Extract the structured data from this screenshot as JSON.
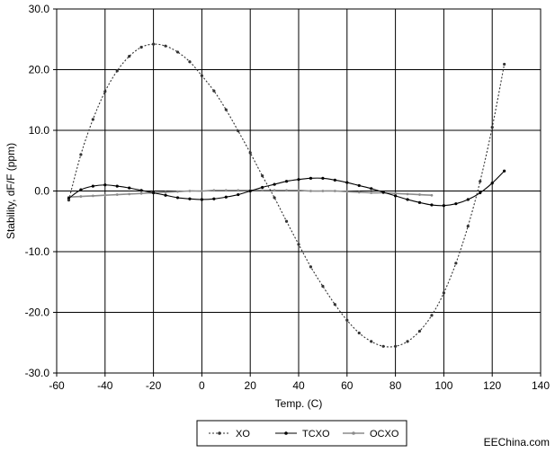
{
  "chart_data": {
    "type": "line",
    "title": "",
    "xlabel": "Temp. (C)",
    "ylabel": "Stability, dF/F (ppm)",
    "xlim": [
      -60,
      140
    ],
    "ylim": [
      -30,
      30
    ],
    "xticks": [
      "-60",
      "-40",
      "-20",
      "0",
      "20",
      "40",
      "60",
      "80",
      "100",
      "120",
      "140"
    ],
    "yticks": [
      "30.0",
      "20.0",
      "10.0",
      "0.0",
      "-10.0",
      "-20.0",
      "-30.0"
    ],
    "grid": true,
    "legend_position": "bottom",
    "series": [
      {
        "name": "XO",
        "style": "dotted-with-markers",
        "color": "#333333",
        "x": [
          -55,
          -50,
          -45,
          -40,
          -35,
          -30,
          -25,
          -20,
          -15,
          -10,
          -5,
          0,
          5,
          10,
          15,
          20,
          25,
          30,
          35,
          40,
          45,
          50,
          55,
          60,
          65,
          70,
          75,
          80,
          85,
          90,
          95,
          100,
          105,
          110,
          115,
          120,
          125
        ],
        "y": [
          -1.5,
          6.0,
          11.8,
          16.4,
          19.8,
          22.2,
          23.7,
          24.2,
          23.9,
          22.9,
          21.3,
          19.0,
          16.5,
          13.4,
          9.9,
          6.3,
          2.5,
          -1.1,
          -5.0,
          -8.8,
          -12.5,
          -15.7,
          -18.7,
          -21.3,
          -23.4,
          -24.8,
          -25.6,
          -25.6,
          -24.8,
          -23.1,
          -20.5,
          -16.8,
          -11.9,
          -5.8,
          1.6,
          10.5,
          20.9
        ]
      },
      {
        "name": "TCXO",
        "style": "solid-with-markers",
        "color": "#000000",
        "x": [
          -55,
          -50,
          -45,
          -40,
          -35,
          -30,
          -25,
          -20,
          -15,
          -10,
          -5,
          0,
          5,
          10,
          15,
          20,
          25,
          30,
          35,
          40,
          45,
          50,
          55,
          60,
          65,
          70,
          75,
          80,
          85,
          90,
          95,
          100,
          105,
          110,
          115,
          120,
          125
        ],
        "y": [
          -1.2,
          0.2,
          0.8,
          1.0,
          0.8,
          0.5,
          0.1,
          -0.3,
          -0.7,
          -1.1,
          -1.3,
          -1.4,
          -1.3,
          -1.0,
          -0.6,
          0.0,
          0.6,
          1.1,
          1.6,
          1.9,
          2.1,
          2.1,
          1.8,
          1.4,
          0.9,
          0.4,
          -0.2,
          -0.8,
          -1.4,
          -1.9,
          -2.3,
          -2.4,
          -2.1,
          -1.4,
          -0.3,
          1.3,
          3.3
        ]
      },
      {
        "name": "OCXO",
        "style": "solid-with-markers",
        "color": "#8c8c8c",
        "x": [
          -55,
          -50,
          -45,
          -40,
          -35,
          -30,
          -25,
          -20,
          -15,
          -10,
          -5,
          0,
          5,
          10,
          15,
          20,
          25,
          30,
          35,
          40,
          45,
          50,
          55,
          60,
          65,
          70,
          75,
          80,
          85,
          90,
          95
        ],
        "y": [
          -1.0,
          -0.9,
          -0.8,
          -0.7,
          -0.6,
          -0.5,
          -0.4,
          -0.3,
          -0.2,
          -0.1,
          0.0,
          0.0,
          0.1,
          0.1,
          0.1,
          0.1,
          0.1,
          0.1,
          0.1,
          0.1,
          0.0,
          0.0,
          0.0,
          -0.1,
          -0.2,
          -0.3,
          -0.3,
          -0.4,
          -0.5,
          -0.6,
          -0.7
        ]
      }
    ]
  },
  "watermark": "EEChina.com"
}
